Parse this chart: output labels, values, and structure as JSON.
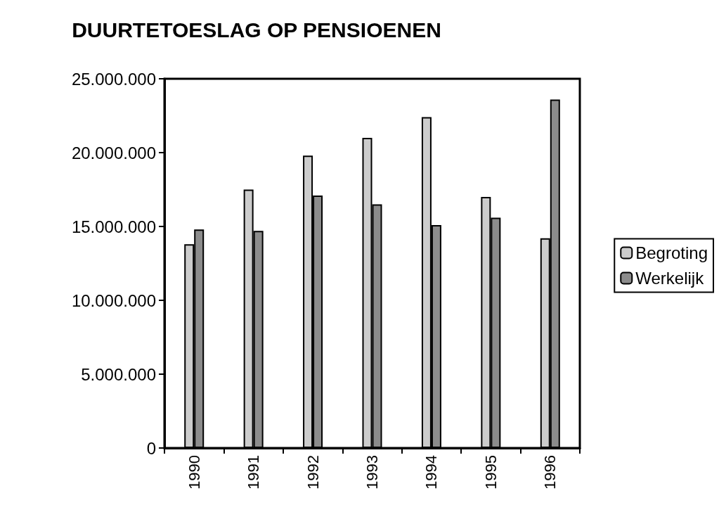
{
  "chart_data": {
    "type": "bar",
    "title": "DUURTETOESLAG OP PENSIOENEN",
    "categories": [
      "1990",
      "1991",
      "1992",
      "1993",
      "1994",
      "1995",
      "1996"
    ],
    "series": [
      {
        "name": "Begroting",
        "color": "#cccccc",
        "values": [
          13800000,
          17500000,
          19800000,
          21000000,
          22400000,
          17000000,
          14200000
        ]
      },
      {
        "name": "Werkelijk",
        "color": "#8c8c8c",
        "values": [
          14800000,
          14700000,
          17100000,
          16500000,
          15100000,
          15600000,
          23600000
        ]
      }
    ],
    "ylim": [
      0,
      25000000
    ],
    "yticks": [
      0,
      {
        "value": 5000000,
        "label": "5.000.000"
      },
      {
        "value": 10000000,
        "label": "10.000.000"
      },
      {
        "value": 15000000,
        "label": "15.000.000"
      },
      {
        "value": 20000000,
        "label": "20.000.000"
      },
      {
        "value": 25000000,
        "label": "25.000.000"
      }
    ],
    "grid": false,
    "legend": "right"
  }
}
